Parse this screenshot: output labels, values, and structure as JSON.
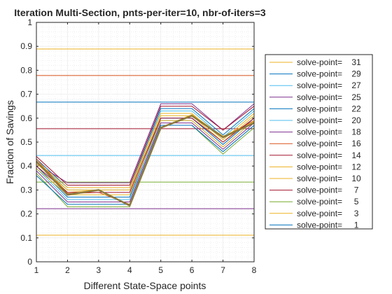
{
  "chart_data": {
    "type": "line",
    "title": "Iteration Multi-Section, pnts-per-iter=10, nbr-of-iters=3",
    "xlabel": "Different State-Space points",
    "ylabel": "Fraction of Savings",
    "xlim": [
      1,
      8
    ],
    "ylim": [
      0,
      1
    ],
    "x": [
      1,
      2,
      3,
      4,
      5,
      6,
      7,
      8
    ],
    "xticks": [
      "1",
      "2",
      "3",
      "4",
      "5",
      "6",
      "7",
      "8"
    ],
    "yticks": [
      "0",
      "0.1",
      "0.2",
      "0.3",
      "0.4",
      "0.5",
      "0.6",
      "0.7",
      "0.8",
      "0.9",
      "1"
    ],
    "grid": "minor-dotted",
    "legend_position": "outside-right",
    "series": [
      {
        "name": "solve-point=    31",
        "color": "#EDB120",
        "values": [
          0.42,
          0.29,
          0.3,
          0.235,
          0.56,
          0.615,
          0.525,
          0.585
        ]
      },
      {
        "name": "solve-point=    29",
        "color": "#0072BD",
        "values": [
          0.43,
          0.31,
          0.31,
          0.31,
          0.64,
          0.64,
          0.53,
          0.64
        ]
      },
      {
        "name": "solve-point=    27",
        "color": "#4DBEEE",
        "values": [
          0.42,
          0.3,
          0.3,
          0.3,
          0.63,
          0.63,
          0.52,
          0.63
        ]
      },
      {
        "name": "solve-point=    25",
        "color": "#7E2F8E",
        "values": [
          0.41,
          0.33,
          0.33,
          0.33,
          0.66,
          0.66,
          0.55,
          0.66
        ]
      },
      {
        "name": "solve-point=    22",
        "color": "#0072BD",
        "values": [
          0.4,
          0.27,
          0.27,
          0.27,
          0.6,
          0.6,
          0.49,
          0.6
        ]
      },
      {
        "name": "solve-point=    20",
        "color": "#4DBEEE",
        "values": [
          0.39,
          0.26,
          0.26,
          0.26,
          0.59,
          0.59,
          0.48,
          0.59
        ]
      },
      {
        "name": "solve-point=    18",
        "color": "#7E2F8E",
        "values": [
          0.38,
          0.25,
          0.25,
          0.25,
          0.58,
          0.58,
          0.47,
          0.58
        ]
      },
      {
        "name": "solve-point=    16",
        "color": "#D95319",
        "values": [
          0.43,
          0.285,
          0.29,
          0.24,
          0.56,
          0.61,
          0.52,
          0.59
        ]
      },
      {
        "name": "solve-point=    14",
        "color": "#A2142F",
        "values": [
          0.44,
          0.32,
          0.32,
          0.32,
          0.65,
          0.65,
          0.55,
          0.65
        ]
      },
      {
        "name": "solve-point=    12",
        "color": "#EDB120",
        "values": [
          0.42,
          0.31,
          0.31,
          0.31,
          0.62,
          0.62,
          0.51,
          0.62
        ]
      },
      {
        "name": "solve-point=    10",
        "color": "#EDB120",
        "values": [
          0.41,
          0.3,
          0.3,
          0.3,
          0.61,
          0.61,
          0.5,
          0.61
        ]
      },
      {
        "name": "solve-point=     7",
        "color": "#A2142F",
        "values": [
          0.4,
          0.29,
          0.29,
          0.29,
          0.6,
          0.6,
          0.5,
          0.6
        ]
      },
      {
        "name": "solve-point=     5",
        "color": "#77AC30",
        "values": [
          0.37,
          0.23,
          0.23,
          0.23,
          0.57,
          0.57,
          0.45,
          0.56
        ]
      },
      {
        "name": "solve-point=     3",
        "color": "#EDB120",
        "values": [
          0.39,
          0.28,
          0.28,
          0.28,
          0.59,
          0.59,
          0.48,
          0.59
        ]
      },
      {
        "name": "solve-point=     1",
        "color": "#0072BD",
        "values": [
          0.36,
          0.24,
          0.24,
          0.24,
          0.57,
          0.57,
          0.46,
          0.57
        ]
      }
    ],
    "reference_lines": [
      {
        "y": 1.0,
        "color": "#7E2F8E"
      },
      {
        "y": 0.889,
        "color": "#EDB120"
      },
      {
        "y": 0.778,
        "color": "#D95319"
      },
      {
        "y": 0.667,
        "color": "#0072BD"
      },
      {
        "y": 0.556,
        "color": "#A2142F"
      },
      {
        "y": 0.444,
        "color": "#4DBEEE"
      },
      {
        "y": 0.333,
        "color": "#77AC30"
      },
      {
        "y": 0.222,
        "color": "#7E2F8E"
      },
      {
        "y": 0.111,
        "color": "#EDB120"
      },
      {
        "y": 0.0,
        "color": "#D95319"
      }
    ],
    "highlight_series": {
      "color": "#8C7A3C",
      "values": [
        0.42,
        0.28,
        0.3,
        0.235,
        0.56,
        0.61,
        0.52,
        0.58
      ]
    }
  }
}
